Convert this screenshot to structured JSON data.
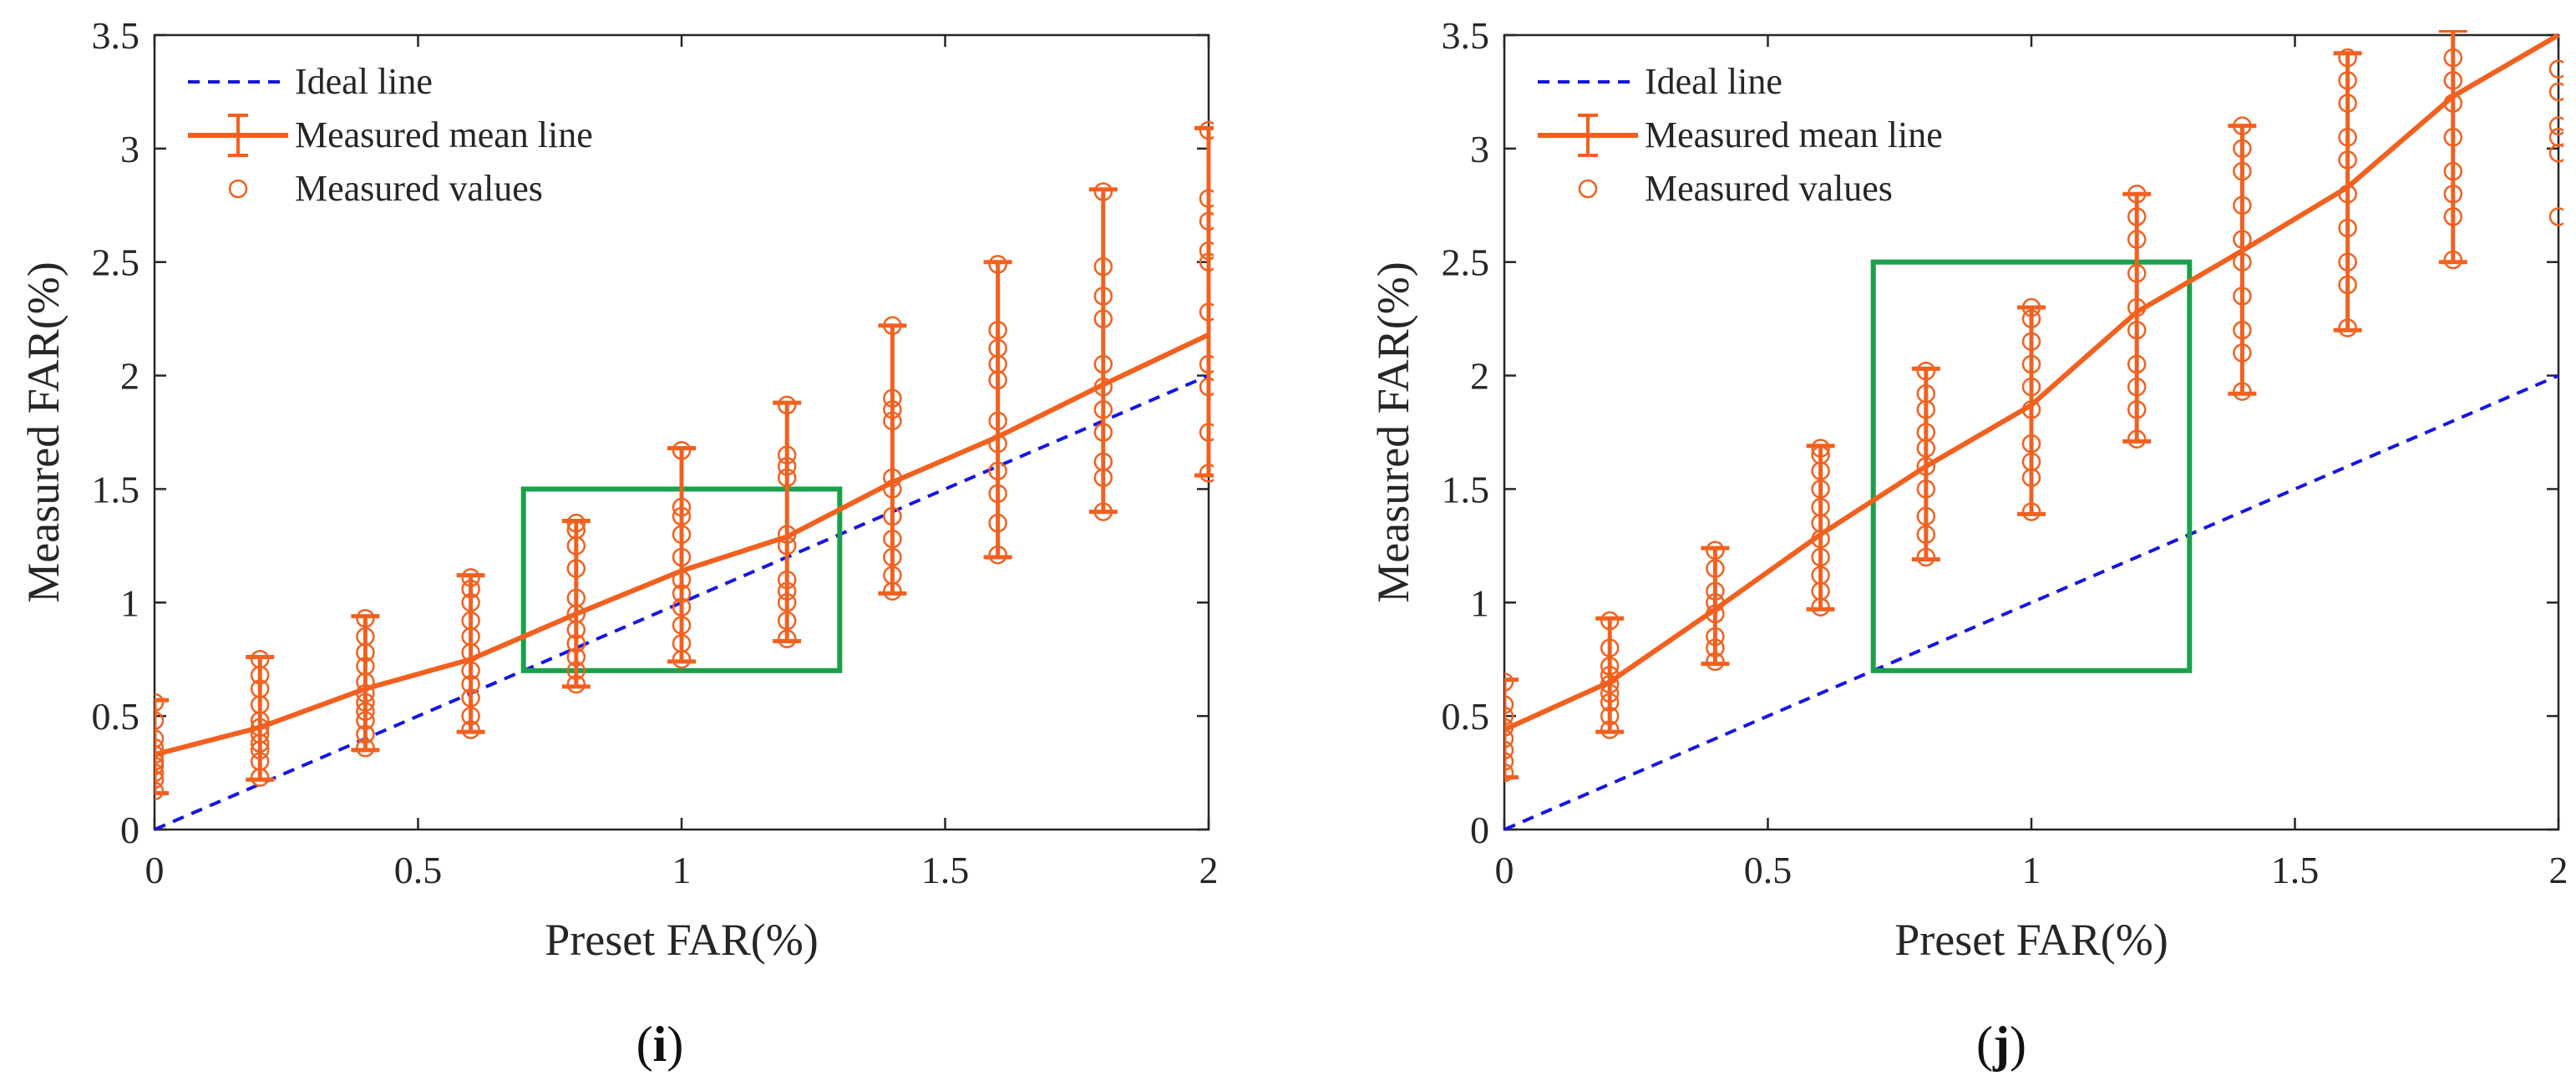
{
  "colors": {
    "ideal": "#1515e6",
    "measured": "#f2601f",
    "box": "#1aa14a",
    "axis": "#262626"
  },
  "chart_data": [
    {
      "panel_label": "i",
      "type": "line",
      "xlabel": "Preset FAR(%)",
      "ylabel": "Measured FAR(%)",
      "xlim": [
        0,
        2
      ],
      "ylim": [
        0,
        3.5
      ],
      "xticks": [
        0,
        0.5,
        1,
        1.5,
        2
      ],
      "xtick_labels": [
        "0",
        "0.5",
        "1",
        "1.5",
        "2"
      ],
      "yticks": [
        0,
        0.5,
        1,
        1.5,
        2,
        2.5,
        3,
        3.5
      ],
      "ytick_labels": [
        "0",
        "0.5",
        "1",
        "1.5",
        "2",
        "2.5",
        "3",
        "3.5"
      ],
      "legend": [
        "Ideal line",
        "Measured mean line",
        "Measured values"
      ],
      "legend_position": "top-left",
      "ideal_line": {
        "x": [
          0,
          2
        ],
        "y": [
          0,
          2
        ]
      },
      "mean_line": {
        "x": [
          0,
          0.2,
          0.4,
          0.6,
          0.8,
          1.0,
          1.2,
          1.4,
          1.6,
          1.8,
          2.0
        ],
        "y": [
          0.33,
          0.45,
          0.62,
          0.75,
          0.95,
          1.14,
          1.29,
          1.53,
          1.73,
          1.96,
          2.18
        ]
      },
      "error_bars": {
        "x": [
          0,
          0.2,
          0.4,
          0.6,
          0.8,
          1.0,
          1.2,
          1.4,
          1.6,
          1.8,
          2.0
        ],
        "low": [
          0.16,
          0.22,
          0.35,
          0.43,
          0.63,
          0.74,
          0.83,
          1.04,
          1.2,
          1.4,
          1.56
        ],
        "high": [
          0.57,
          0.76,
          0.94,
          1.12,
          1.36,
          1.68,
          1.88,
          2.22,
          2.5,
          2.82,
          3.09
        ]
      },
      "measured_values": [
        {
          "x": 0,
          "y": [
            0.17,
            0.22,
            0.25,
            0.28,
            0.3,
            0.33,
            0.36,
            0.4,
            0.48,
            0.56
          ]
        },
        {
          "x": 0.2,
          "y": [
            0.23,
            0.3,
            0.35,
            0.38,
            0.42,
            0.45,
            0.48,
            0.55,
            0.62,
            0.68,
            0.75
          ]
        },
        {
          "x": 0.4,
          "y": [
            0.36,
            0.42,
            0.48,
            0.52,
            0.56,
            0.6,
            0.65,
            0.72,
            0.78,
            0.85,
            0.93
          ]
        },
        {
          "x": 0.6,
          "y": [
            0.44,
            0.5,
            0.58,
            0.64,
            0.7,
            0.78,
            0.85,
            0.92,
            1.0,
            1.06,
            1.11
          ]
        },
        {
          "x": 0.8,
          "y": [
            0.64,
            0.7,
            0.76,
            0.82,
            0.88,
            0.95,
            1.02,
            1.15,
            1.25,
            1.32,
            1.35
          ]
        },
        {
          "x": 1.0,
          "y": [
            0.75,
            0.82,
            0.9,
            0.98,
            1.04,
            1.1,
            1.2,
            1.3,
            1.38,
            1.42,
            1.67
          ]
        },
        {
          "x": 1.2,
          "y": [
            0.84,
            0.92,
            1.0,
            1.05,
            1.1,
            1.25,
            1.3,
            1.55,
            1.6,
            1.65,
            1.87
          ]
        },
        {
          "x": 1.4,
          "y": [
            1.05,
            1.12,
            1.2,
            1.28,
            1.38,
            1.5,
            1.55,
            1.8,
            1.85,
            1.9,
            2.22
          ]
        },
        {
          "x": 1.6,
          "y": [
            1.21,
            1.35,
            1.48,
            1.58,
            1.7,
            1.8,
            1.98,
            2.05,
            2.12,
            2.2,
            2.49
          ]
        },
        {
          "x": 1.8,
          "y": [
            1.4,
            1.55,
            1.62,
            1.75,
            1.85,
            1.95,
            2.05,
            2.25,
            2.35,
            2.48,
            2.81
          ]
        },
        {
          "x": 2.0,
          "y": [
            1.57,
            1.75,
            1.95,
            2.05,
            2.28,
            2.5,
            2.55,
            2.68,
            2.78,
            3.08
          ]
        }
      ],
      "highlight_box": {
        "x": [
          0.7,
          1.3
        ],
        "y": [
          0.7,
          1.5
        ]
      }
    },
    {
      "panel_label": "j",
      "type": "line",
      "xlabel": "Preset FAR(%)",
      "ylabel": "Measured FAR(%)",
      "xlim": [
        0,
        2
      ],
      "ylim": [
        0,
        3.5
      ],
      "xticks": [
        0,
        0.5,
        1,
        1.5,
        2
      ],
      "xtick_labels": [
        "0",
        "0.5",
        "1",
        "1.5",
        "2"
      ],
      "yticks": [
        0,
        0.5,
        1,
        1.5,
        2,
        2.5,
        3,
        3.5
      ],
      "ytick_labels": [
        "0",
        "0.5",
        "1",
        "1.5",
        "2",
        "2.5",
        "3",
        "3.5"
      ],
      "legend": [
        "Ideal line",
        "Measured mean line",
        "Measured values"
      ],
      "legend_position": "top-left",
      "ideal_line": {
        "x": [
          0,
          2
        ],
        "y": [
          0,
          2
        ]
      },
      "mean_line": {
        "x": [
          0,
          0.2,
          0.4,
          0.6,
          0.8,
          1.0,
          1.2,
          1.4,
          1.6,
          1.8,
          2.0
        ],
        "y": [
          0.44,
          0.65,
          0.97,
          1.3,
          1.6,
          1.87,
          2.28,
          2.55,
          2.83,
          3.23,
          3.5
        ]
      },
      "error_bars": {
        "x": [
          0,
          0.2,
          0.4,
          0.6,
          0.8,
          1.0,
          1.2,
          1.4,
          1.6,
          1.8
        ],
        "low": [
          0.23,
          0.43,
          0.73,
          0.97,
          1.19,
          1.39,
          1.71,
          1.92,
          2.2,
          2.5
        ],
        "high": [
          0.66,
          0.93,
          1.24,
          1.69,
          2.03,
          2.3,
          2.8,
          3.1,
          3.42,
          3.52
        ]
      },
      "measured_values": [
        {
          "x": 0,
          "y": [
            0.25,
            0.3,
            0.35,
            0.4,
            0.45,
            0.5,
            0.55,
            0.65
          ]
        },
        {
          "x": 0.2,
          "y": [
            0.44,
            0.5,
            0.56,
            0.6,
            0.64,
            0.68,
            0.72,
            0.8,
            0.92
          ]
        },
        {
          "x": 0.4,
          "y": [
            0.74,
            0.8,
            0.85,
            0.95,
            1.0,
            1.05,
            1.15,
            1.23
          ]
        },
        {
          "x": 0.6,
          "y": [
            0.98,
            1.05,
            1.12,
            1.2,
            1.28,
            1.35,
            1.42,
            1.5,
            1.58,
            1.65,
            1.68
          ]
        },
        {
          "x": 0.8,
          "y": [
            1.2,
            1.3,
            1.38,
            1.5,
            1.6,
            1.68,
            1.75,
            1.85,
            1.92,
            2.02
          ]
        },
        {
          "x": 1.0,
          "y": [
            1.4,
            1.55,
            1.62,
            1.7,
            1.85,
            1.95,
            2.05,
            2.15,
            2.25,
            2.3
          ]
        },
        {
          "x": 1.2,
          "y": [
            1.72,
            1.85,
            1.95,
            2.05,
            2.2,
            2.3,
            2.45,
            2.6,
            2.7,
            2.8
          ]
        },
        {
          "x": 1.4,
          "y": [
            1.93,
            2.1,
            2.2,
            2.35,
            2.5,
            2.6,
            2.75,
            2.9,
            3.0,
            3.1
          ]
        },
        {
          "x": 1.6,
          "y": [
            2.21,
            2.4,
            2.5,
            2.65,
            2.8,
            2.95,
            3.05,
            3.2,
            3.3,
            3.4
          ]
        },
        {
          "x": 1.8,
          "y": [
            2.51,
            2.7,
            2.8,
            2.9,
            3.05,
            3.2,
            3.3,
            3.4
          ]
        },
        {
          "x": 2.0,
          "y": [
            2.7,
            2.98,
            3.05,
            3.1,
            3.25,
            3.35
          ]
        }
      ],
      "highlight_box": {
        "x": [
          0.7,
          1.3
        ],
        "y": [
          0.7,
          2.5
        ]
      }
    }
  ]
}
